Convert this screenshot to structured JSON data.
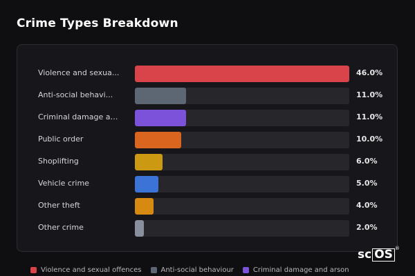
{
  "header": {
    "title": "Crime Types Breakdown"
  },
  "chart_data": {
    "type": "bar",
    "orientation": "horizontal",
    "title": "Crime Types Breakdown",
    "xlim": [
      0,
      46
    ],
    "categories": [
      "Violence and sexua...",
      "Anti-social behavi...",
      "Criminal damage an...",
      "Public order",
      "Shoplifting",
      "Vehicle crime",
      "Other theft",
      "Other crime"
    ],
    "values": [
      46.0,
      11.0,
      11.0,
      10.0,
      6.0,
      5.0,
      4.0,
      2.0
    ],
    "value_labels": [
      "46.0%",
      "11.0%",
      "11.0%",
      "10.0%",
      "6.0%",
      "5.0%",
      "4.0%",
      "2.0%"
    ],
    "colors": [
      "#d9444a",
      "#5d6673",
      "#7b52d9",
      "#d9651f",
      "#cc9a12",
      "#3b74d6",
      "#d68a12",
      "#8a8f9e"
    ],
    "grid": false,
    "legend_position": "bottom",
    "legend": [
      {
        "label": "Violence and sexual offences",
        "color": "#d9444a"
      },
      {
        "label": "Anti-social behaviour",
        "color": "#5d6673"
      },
      {
        "label": "Criminal damage and arson",
        "color": "#7b52d9"
      }
    ]
  },
  "logo": {
    "left": "sc",
    "boxed": "OS",
    "mark": "®"
  }
}
